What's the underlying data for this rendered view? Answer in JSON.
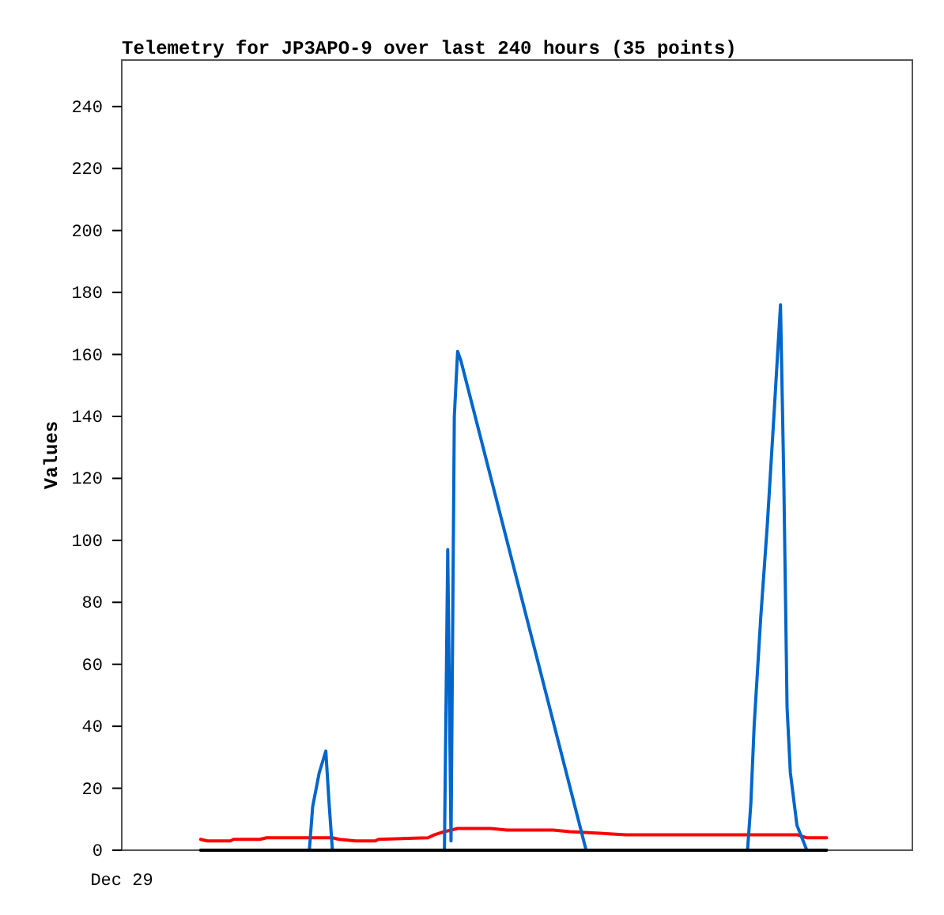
{
  "chart_data": {
    "type": "line",
    "title": "Telemetry for JP3APO-9 over last 240 hours (35 points)",
    "ylabel": "Values",
    "annotations": [
      "Dec 29"
    ],
    "categories": [
      null,
      null,
      null,
      null,
      null,
      null,
      null,
      null,
      null,
      null,
      null,
      null,
      null,
      null,
      null,
      null,
      null,
      null,
      null,
      null,
      null,
      null,
      null,
      null,
      null,
      null,
      null,
      null,
      null,
      null,
      null,
      null,
      null,
      null,
      null,
      null,
      null,
      null,
      null,
      null,
      null,
      null,
      null,
      null,
      null,
      null,
      null,
      null,
      null,
      null,
      null,
      null,
      null,
      null,
      null,
      null,
      null,
      null,
      null,
      null,
      null,
      null,
      null,
      null,
      null,
      null,
      null,
      null,
      null,
      null,
      null,
      null,
      null,
      null,
      null,
      null,
      null,
      null,
      null,
      null,
      null,
      null,
      null,
      null,
      null,
      null,
      null,
      null,
      null,
      null,
      null,
      null,
      null,
      null,
      null,
      null,
      null,
      null,
      null,
      null,
      null,
      null,
      null,
      null,
      null,
      null,
      null,
      null,
      null,
      null,
      null,
      null,
      null,
      null,
      null,
      null,
      null,
      null,
      null,
      null,
      null,
      null,
      null,
      null,
      null,
      null,
      null,
      null,
      null,
      null,
      null,
      null,
      null,
      null,
      null,
      null,
      null,
      null,
      null,
      null,
      null,
      null,
      null,
      null,
      null,
      null,
      null,
      null,
      null,
      null,
      null,
      null,
      null,
      null,
      null,
      null,
      null,
      null,
      null,
      null,
      null,
      null,
      null,
      null,
      null,
      null,
      null,
      null,
      null,
      null,
      null,
      null,
      null,
      null,
      null,
      null,
      null,
      null,
      null,
      null,
      null,
      null,
      null,
      null,
      null,
      null,
      null,
      null,
      null,
      null,
      null
    ],
    "ylim": [
      0,
      255
    ],
    "yticks": [
      0,
      20,
      40,
      60,
      80,
      100,
      120,
      140,
      160,
      180,
      200,
      220,
      240
    ],
    "marker": "none",
    "line_style": "solid",
    "series": [
      {
        "color": "#ff0000",
        "values": [
          3.5,
          null,
          3,
          null,
          null,
          null,
          null,
          null,
          null,
          3,
          3.5,
          null,
          null,
          null,
          null,
          null,
          null,
          null,
          3.5,
          null,
          4,
          null,
          null,
          null,
          null,
          null,
          null,
          null,
          null,
          null,
          null,
          null,
          null,
          null,
          null,
          null,
          null,
          null,
          null,
          null,
          4,
          null,
          3.5,
          null,
          null,
          null,
          null,
          3,
          null,
          null,
          null,
          null,
          null,
          3,
          3.5,
          null,
          null,
          null,
          null,
          null,
          null,
          null,
          null,
          null,
          null,
          null,
          null,
          null,
          null,
          4,
          null,
          5,
          null,
          null,
          6,
          null,
          null,
          null,
          7,
          null,
          null,
          null,
          null,
          null,
          null,
          null,
          null,
          null,
          7,
          null,
          null,
          null,
          null,
          6.5,
          null,
          null,
          null,
          null,
          null,
          null,
          null,
          null,
          null,
          null,
          null,
          null,
          null,
          6.5,
          null,
          null,
          null,
          null,
          6,
          null,
          null,
          null,
          null,
          null,
          null,
          null,
          null,
          5.5,
          null,
          null,
          null,
          null,
          null,
          null,
          null,
          5,
          null,
          null,
          null,
          null,
          null,
          null,
          null,
          null,
          null,
          null,
          null,
          null,
          null,
          null,
          null,
          null,
          null,
          null,
          null,
          null,
          null,
          null,
          null,
          null,
          null,
          null,
          null,
          null,
          null,
          null,
          null,
          null,
          null,
          null,
          null,
          null,
          null,
          null,
          null,
          null,
          null,
          null,
          null,
          null,
          null,
          null,
          null,
          null,
          null,
          null,
          null,
          5,
          null,
          null,
          4,
          null,
          null,
          null,
          null,
          null,
          4
        ]
      },
      {
        "color": "#0066cc",
        "values": [
          null,
          null,
          null,
          null,
          null,
          null,
          null,
          null,
          null,
          null,
          null,
          null,
          null,
          null,
          null,
          null,
          null,
          null,
          null,
          null,
          null,
          null,
          null,
          null,
          null,
          null,
          null,
          null,
          null,
          null,
          null,
          null,
          null,
          0,
          14,
          null,
          25,
          null,
          32,
          15,
          0,
          null,
          null,
          null,
          null,
          null,
          null,
          null,
          null,
          null,
          null,
          null,
          null,
          null,
          null,
          null,
          null,
          null,
          null,
          null,
          null,
          null,
          null,
          null,
          null,
          null,
          null,
          null,
          null,
          null,
          null,
          null,
          null,
          null,
          0,
          97,
          3,
          140,
          161,
          158,
          null,
          null,
          null,
          null,
          null,
          null,
          null,
          null,
          null,
          null,
          null,
          null,
          null,
          null,
          null,
          null,
          null,
          null,
          null,
          null,
          null,
          null,
          null,
          null,
          null,
          null,
          null,
          null,
          null,
          null,
          null,
          null,
          null,
          null,
          null,
          null,
          null,
          0,
          null,
          null,
          null,
          null,
          null,
          null,
          null,
          null,
          null,
          null,
          null,
          null,
          null,
          null,
          null,
          null,
          null,
          null,
          null,
          null,
          null,
          null,
          null,
          null,
          null,
          null,
          null,
          null,
          null,
          null,
          null,
          null,
          null,
          null,
          null,
          null,
          null,
          null,
          null,
          null,
          null,
          null,
          null,
          null,
          null,
          null,
          null,
          null,
          0,
          15,
          40,
          null,
          75,
          null,
          105,
          null,
          140,
          null,
          176,
          120,
          46,
          25,
          null,
          8,
          null,
          null,
          0,
          null,
          null,
          null,
          null,
          null,
          null
        ]
      },
      {
        "color": "#000000",
        "values": [
          0,
          null,
          null,
          null,
          null,
          null,
          null,
          null,
          null,
          null,
          null,
          null,
          null,
          null,
          null,
          null,
          null,
          null,
          null,
          null,
          null,
          null,
          null,
          null,
          null,
          null,
          null,
          null,
          null,
          null,
          null,
          null,
          null,
          null,
          null,
          null,
          null,
          null,
          null,
          null,
          null,
          null,
          null,
          null,
          null,
          null,
          null,
          null,
          null,
          null,
          null,
          null,
          null,
          null,
          null,
          null,
          null,
          null,
          null,
          null,
          null,
          null,
          null,
          null,
          null,
          null,
          null,
          null,
          null,
          null,
          null,
          null,
          null,
          null,
          null,
          null,
          null,
          null,
          null,
          null,
          null,
          null,
          null,
          null,
          null,
          null,
          null,
          null,
          null,
          null,
          null,
          null,
          null,
          null,
          null,
          null,
          null,
          null,
          null,
          null,
          null,
          null,
          null,
          null,
          null,
          null,
          null,
          null,
          null,
          null,
          null,
          null,
          null,
          null,
          null,
          null,
          null,
          null,
          null,
          null,
          null,
          null,
          null,
          null,
          null,
          null,
          null,
          null,
          null,
          null,
          null,
          null,
          null,
          null,
          null,
          null,
          null,
          null,
          null,
          null,
          null,
          null,
          null,
          null,
          null,
          null,
          null,
          null,
          null,
          null,
          null,
          null,
          null,
          null,
          null,
          null,
          null,
          null,
          null,
          null,
          null,
          null,
          null,
          null,
          null,
          null,
          null,
          null,
          null,
          null,
          null,
          null,
          null,
          null,
          null,
          null,
          null,
          null,
          null,
          null,
          null,
          null,
          null,
          null,
          null,
          null,
          null,
          null,
          null,
          null,
          0
        ]
      }
    ]
  }
}
